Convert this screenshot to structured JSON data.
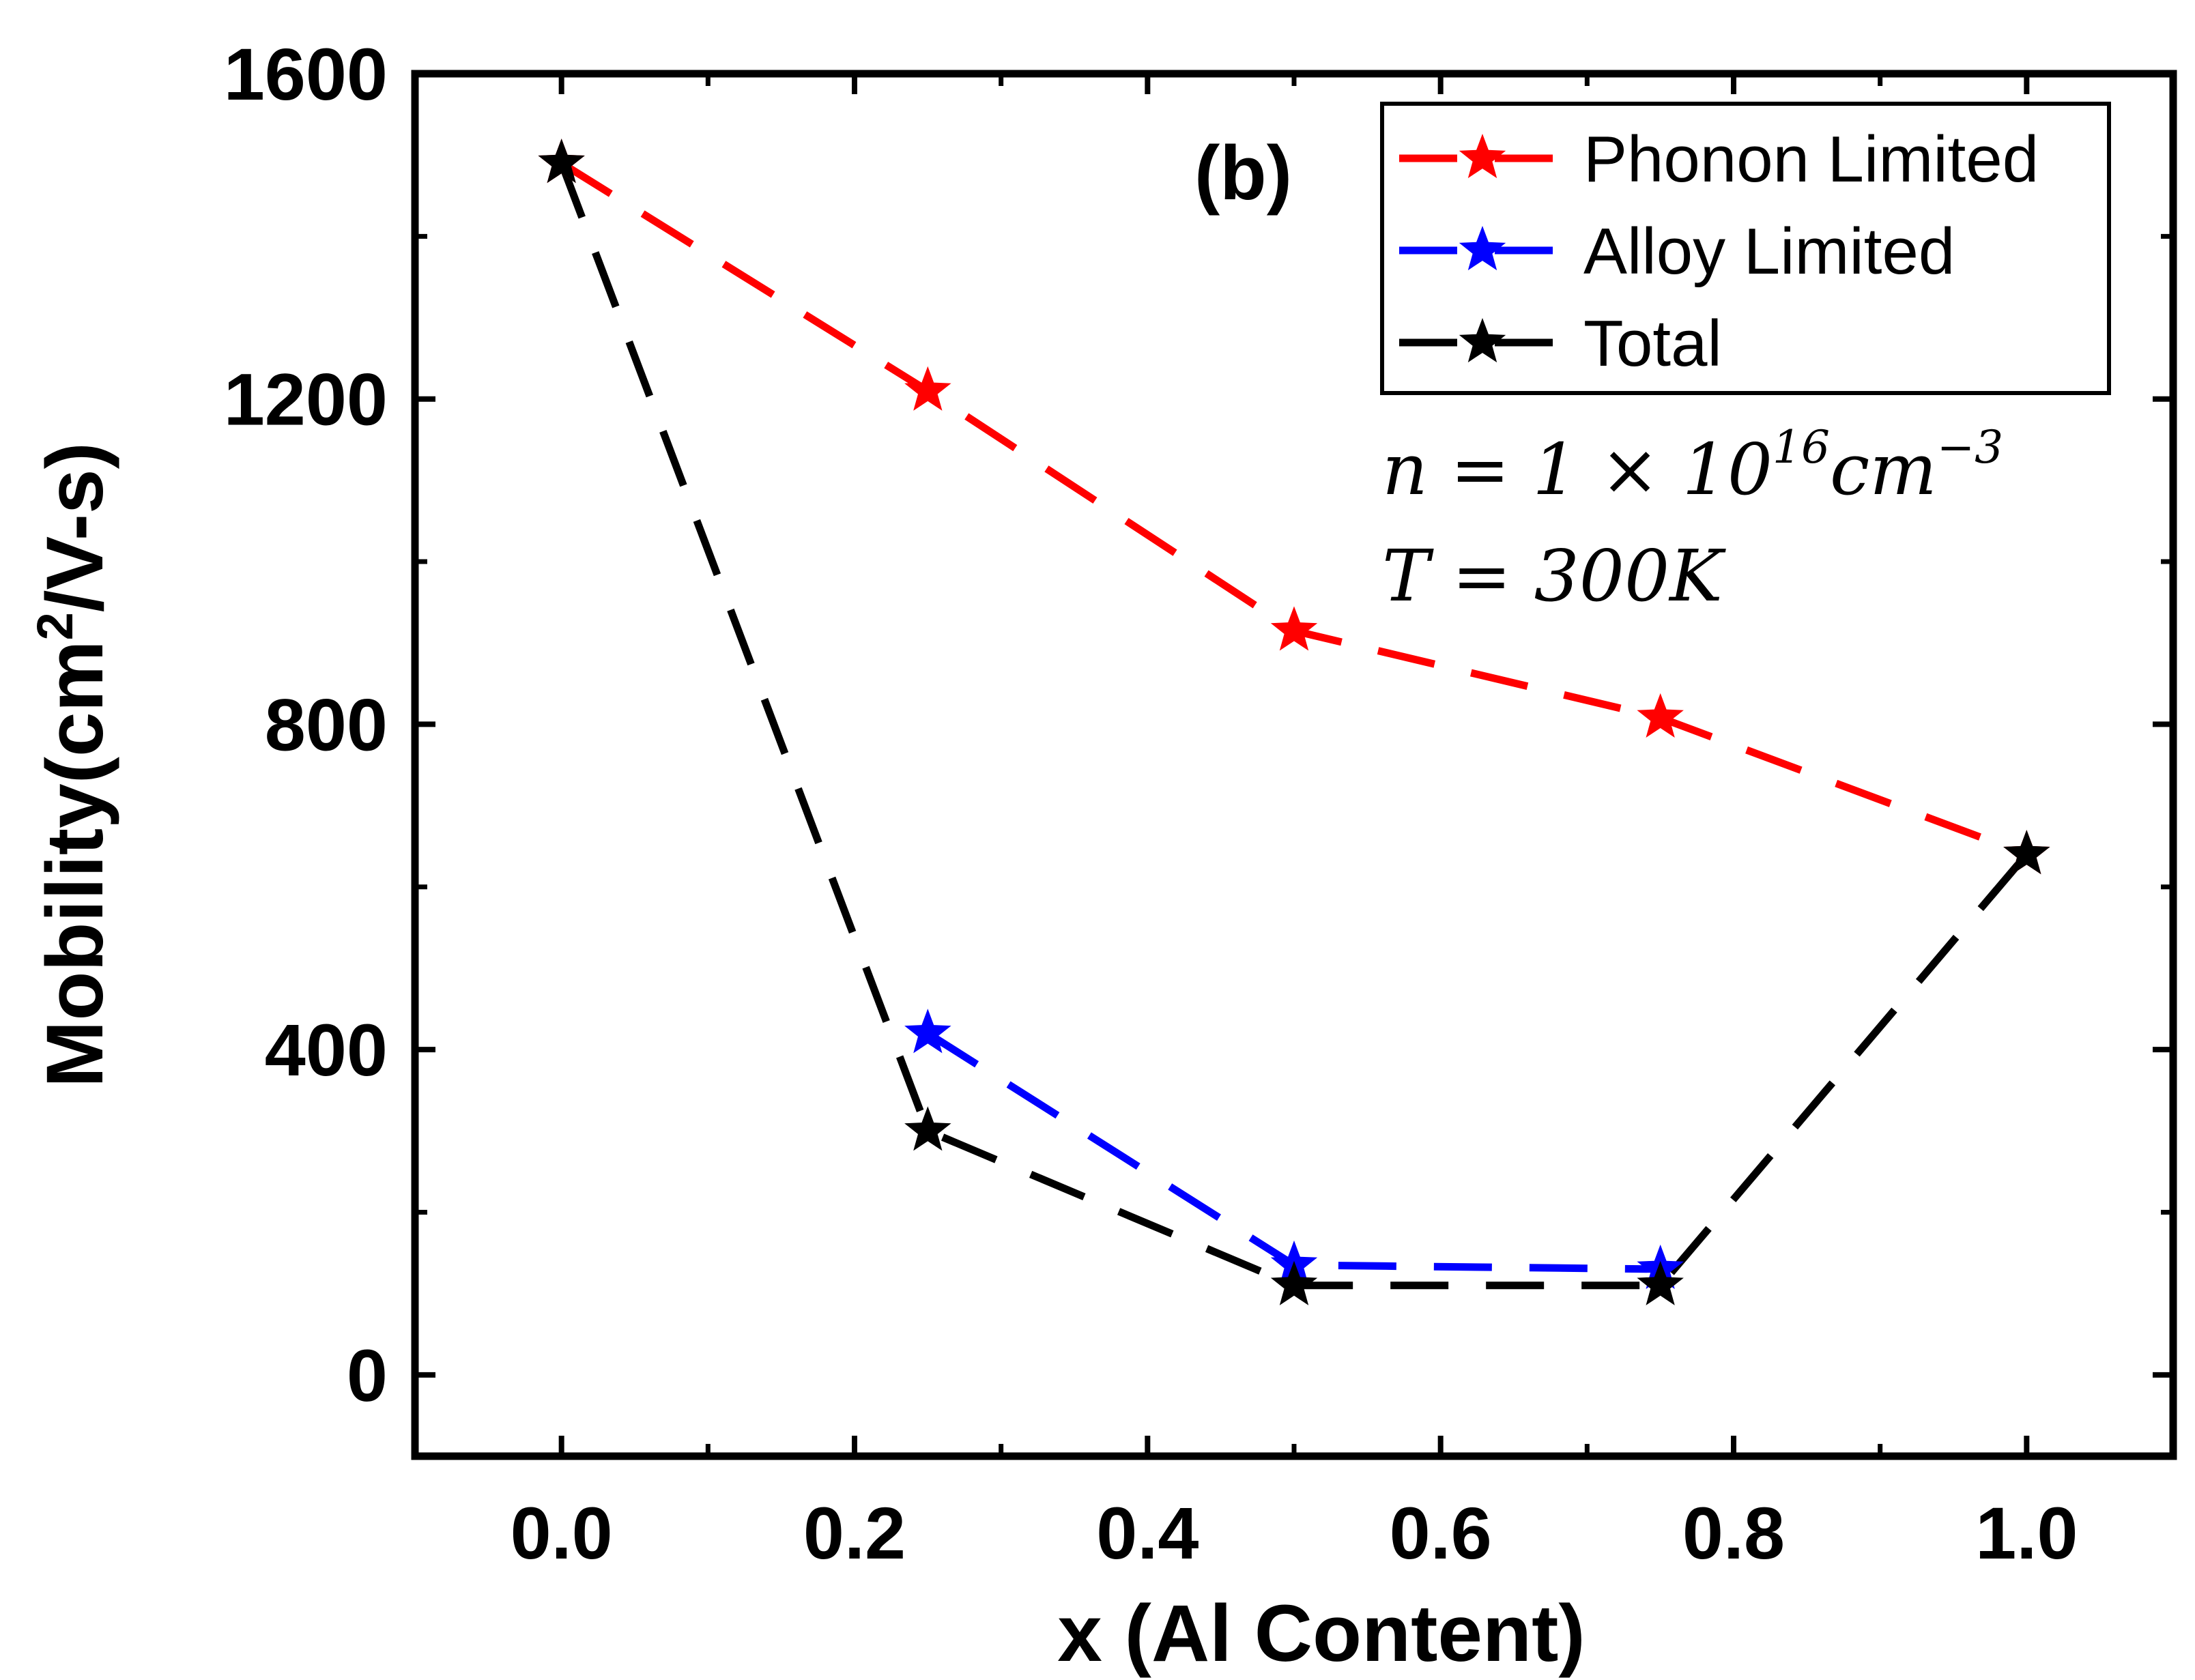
{
  "chart_data": {
    "type": "line",
    "title": "",
    "panel_label": "(b)",
    "xlabel": "x (Al Content)",
    "ylabel": {
      "main": "Mobility(cm",
      "sup": "2",
      "tail": "/V-s)"
    },
    "xlim": [
      -0.1,
      1.1
    ],
    "ylim": [
      -100,
      1600
    ],
    "x_ticks": [
      0.0,
      0.2,
      0.4,
      0.6,
      0.8,
      1.0
    ],
    "x_tick_labels": [
      "0.0",
      "0.2",
      "0.4",
      "0.6",
      "0.8",
      "1.0"
    ],
    "y_ticks": [
      0,
      400,
      800,
      1200,
      1600
    ],
    "y_tick_labels": [
      "0",
      "400",
      "800",
      "1200",
      "1600"
    ],
    "series": [
      {
        "name": "Phonon Limited",
        "color": "#ff0000",
        "x": [
          0.0,
          0.25,
          0.5,
          0.75,
          1.0
        ],
        "values": [
          1490,
          1210,
          915,
          808,
          640
        ]
      },
      {
        "name": "Alloy Limited",
        "color": "#0000ff",
        "x": [
          0.25,
          0.5,
          0.75
        ],
        "values": [
          420,
          135,
          130
        ]
      },
      {
        "name": "Total",
        "color": "#000000",
        "x": [
          0.0,
          0.25,
          0.5,
          0.75,
          1.0
        ],
        "values": [
          1490,
          300,
          110,
          110,
          640
        ]
      }
    ],
    "annotations": {
      "density": {
        "lhs": "n = 1 × 10",
        "exp": "16",
        "unit": "cm",
        "unit_exp": "−3"
      },
      "temperature": "T = 300K"
    },
    "legend_position": "top-right",
    "grid": false
  }
}
